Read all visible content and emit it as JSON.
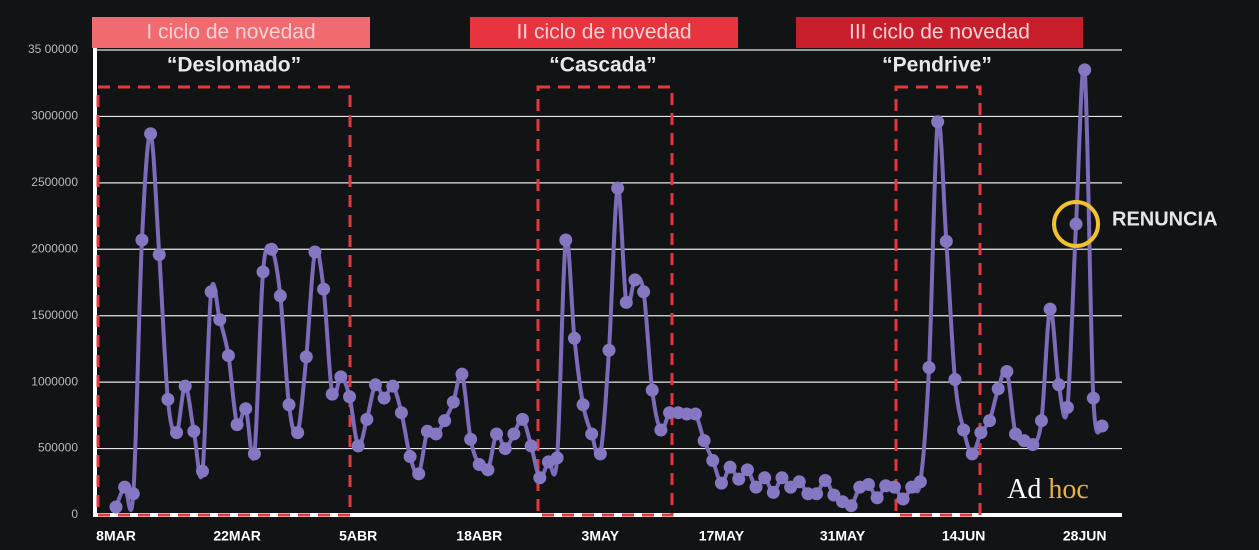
{
  "chart_data": {
    "type": "line",
    "yticks": [
      0,
      500000,
      1000000,
      1500000,
      2000000,
      2500000,
      3000000,
      {
        "value": 3500000,
        "label": "35 00000"
      }
    ],
    "ylim": [
      0,
      3500000
    ],
    "grid": true,
    "categories": [
      "8MAR",
      null,
      null,
      null,
      null,
      null,
      null,
      null,
      null,
      null,
      null,
      null,
      null,
      null,
      "22MAR",
      null,
      null,
      null,
      null,
      null,
      null,
      null,
      null,
      null,
      null,
      null,
      null,
      null,
      "5ABR",
      null,
      null,
      null,
      null,
      null,
      null,
      null,
      null,
      null,
      null,
      null,
      null,
      null,
      "18ABR",
      null,
      null,
      null,
      null,
      null,
      null,
      null,
      null,
      null,
      null,
      null,
      null,
      null,
      "3MAY",
      null,
      null,
      null,
      null,
      null,
      null,
      null,
      null,
      null,
      null,
      null,
      null,
      null,
      "17MAY",
      null,
      null,
      null,
      null,
      null,
      null,
      null,
      null,
      null,
      null,
      null,
      null,
      null,
      "31MAY",
      null,
      null,
      null,
      null,
      null,
      null,
      null,
      null,
      null,
      null,
      null,
      null,
      null,
      "14JUN",
      null,
      null,
      null,
      null,
      null,
      null,
      null,
      null,
      null,
      null,
      null,
      null,
      null,
      "28JUN",
      null,
      null
    ],
    "series": [
      {
        "color": "#7b6bb8",
        "values": [
          60000,
          210000,
          160000,
          2070000,
          2870000,
          1960000,
          870000,
          620000,
          970000,
          630000,
          330000,
          1680000,
          1470000,
          1200000,
          680000,
          800000,
          460000,
          1830000,
          2000000,
          1650000,
          830000,
          620000,
          1190000,
          1980000,
          1700000,
          910000,
          1040000,
          890000,
          520000,
          720000,
          980000,
          880000,
          970000,
          770000,
          440000,
          310000,
          630000,
          610000,
          710000,
          850000,
          1060000,
          570000,
          380000,
          340000,
          610000,
          500000,
          610000,
          720000,
          520000,
          280000,
          400000,
          430000,
          2070000,
          1330000,
          830000,
          610000,
          460000,
          1240000,
          2460000,
          1600000,
          1770000,
          1680000,
          940000,
          640000,
          770000,
          770000,
          760000,
          760000,
          560000,
          410000,
          240000,
          360000,
          270000,
          340000,
          210000,
          280000,
          170000,
          280000,
          210000,
          250000,
          160000,
          160000,
          260000,
          150000,
          100000,
          70000,
          210000,
          230000,
          130000,
          220000,
          210000,
          120000,
          210000,
          250000,
          1110000,
          2960000,
          2060000,
          1020000,
          640000,
          460000,
          620000,
          710000,
          950000,
          1080000,
          610000,
          560000,
          530000,
          710000,
          1550000,
          980000,
          810000,
          2190000,
          3350000,
          880000,
          670000
        ]
      }
    ],
    "annotations": [
      {
        "label": "I ciclo de novedad",
        "name": "“Deslomado”",
        "color": "#f06a70"
      },
      {
        "label": "II ciclo de novedad",
        "name": "“Cascada”",
        "color": "#e8343f"
      },
      {
        "label": "III ciclo de novedad",
        "name": "“Pendrive”",
        "color": "#c81e2c"
      }
    ],
    "highlight": {
      "label": "RENUNCIA",
      "color": "#f2c12e"
    },
    "logo": {
      "text": "Ad",
      "accent": "hoc"
    }
  }
}
